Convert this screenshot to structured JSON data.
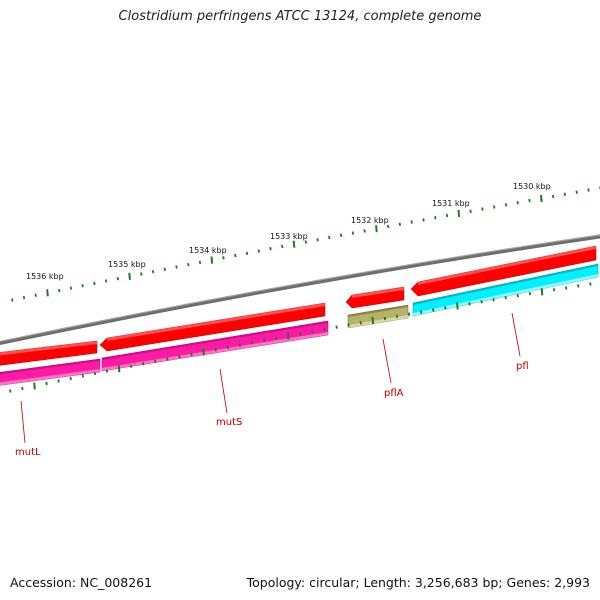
{
  "title": "Clostridium perfringens ATCC 13124, complete genome",
  "footer": {
    "accession": "Accession: NC_008261",
    "topology": "Topology: circular; Length: 3,256,683 bp; Genes: 2,993"
  },
  "colors": {
    "backbone": "#7a7a7a",
    "cds_forward": "#ff0000",
    "gene_magenta": "#ff1aa6",
    "gene_olive": "#b5b26a",
    "gene_cyan": "#00f0ff",
    "tick": "#1e7a1e",
    "label": "#c00000"
  },
  "ticks": [
    {
      "label": "1536 kbp"
    },
    {
      "label": "1535 kbp"
    },
    {
      "label": "1534 kbp"
    },
    {
      "label": "1533 kbp"
    },
    {
      "label": "1532 kbp"
    },
    {
      "label": "1531 kbp"
    },
    {
      "label": "1530 kbp"
    }
  ],
  "genes": [
    {
      "label": "mutL"
    },
    {
      "label": "mutS"
    },
    {
      "label": "pflA"
    },
    {
      "label": "pfl"
    }
  ]
}
